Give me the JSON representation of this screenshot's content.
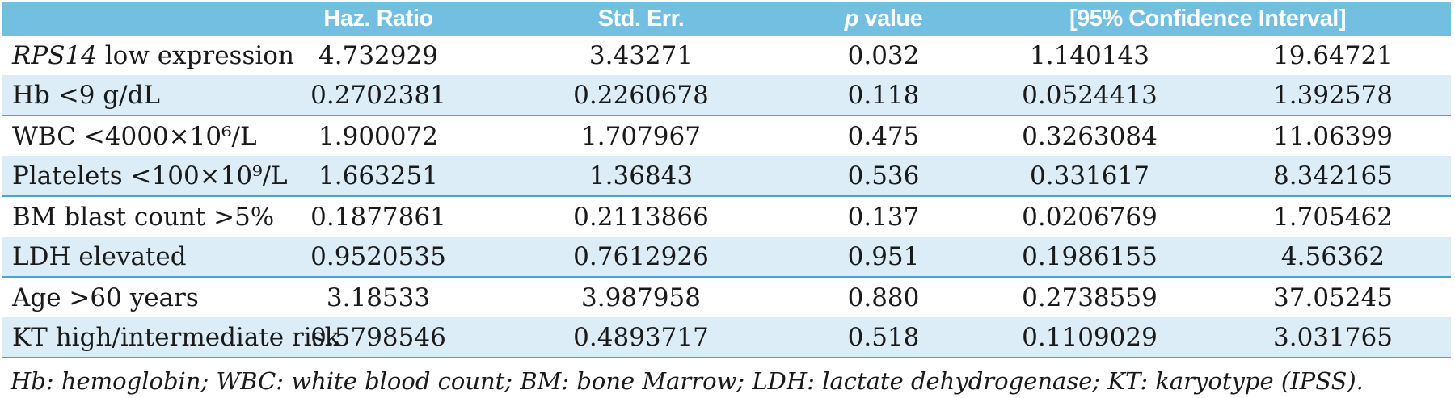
{
  "colors": {
    "header_bg": "#73bfe2",
    "row_shade": "#dcedf8",
    "separator": "#41aad2",
    "text": "#1a1a1a"
  },
  "table": {
    "columns": {
      "label": "",
      "haz": "Haz. Ratio",
      "std": "Std. Err.",
      "p_italic": "p",
      "p_rest": " value",
      "ci": "[95% Confidence Interval]"
    },
    "rows": [
      {
        "label_italic": "RPS14",
        "label_rest": " low expression",
        "haz": "4.732929",
        "std": "3.43271",
        "p": "0.032",
        "ci_low": "1.140143",
        "ci_high": "19.64721"
      },
      {
        "label": "Hb <9 g/dL",
        "haz": "0.2702381",
        "std": "0.2260678",
        "p": "0.118",
        "ci_low": "0.0524413",
        "ci_high": "1.392578"
      },
      {
        "label": "WBC <4000×10⁶/L",
        "haz": "1.900072",
        "std": "1.707967",
        "p": "0.475",
        "ci_low": "0.3263084",
        "ci_high": "11.06399"
      },
      {
        "label": "Platelets <100×10⁹/L",
        "haz": "1.663251",
        "std": "1.36843",
        "p": "0.536",
        "ci_low": "0.331617",
        "ci_high": "8.342165"
      },
      {
        "label": "BM blast count >5%",
        "haz": "0.1877861",
        "std": "0.2113866",
        "p": "0.137",
        "ci_low": "0.0206769",
        "ci_high": "1.705462"
      },
      {
        "label": "LDH elevated",
        "haz": "0.9520535",
        "std": "0.7612926",
        "p": "0.951",
        "ci_low": "0.1986155",
        "ci_high": "4.56362"
      },
      {
        "label": "Age >60 years",
        "haz": "3.18533",
        "std": "3.987958",
        "p": "0.880",
        "ci_low": "0.2738559",
        "ci_high": "37.05245"
      },
      {
        "label": "KT high/intermediate risk",
        "haz": "0.5798546",
        "std": "0.4893717",
        "p": "0.518",
        "ci_low": "0.1109029",
        "ci_high": "3.031765"
      }
    ],
    "footnote": "Hb: hemoglobin; WBC: white blood count; BM: bone Marrow; LDH: lactate dehydrogenase; KT: karyotype (IPSS)."
  }
}
